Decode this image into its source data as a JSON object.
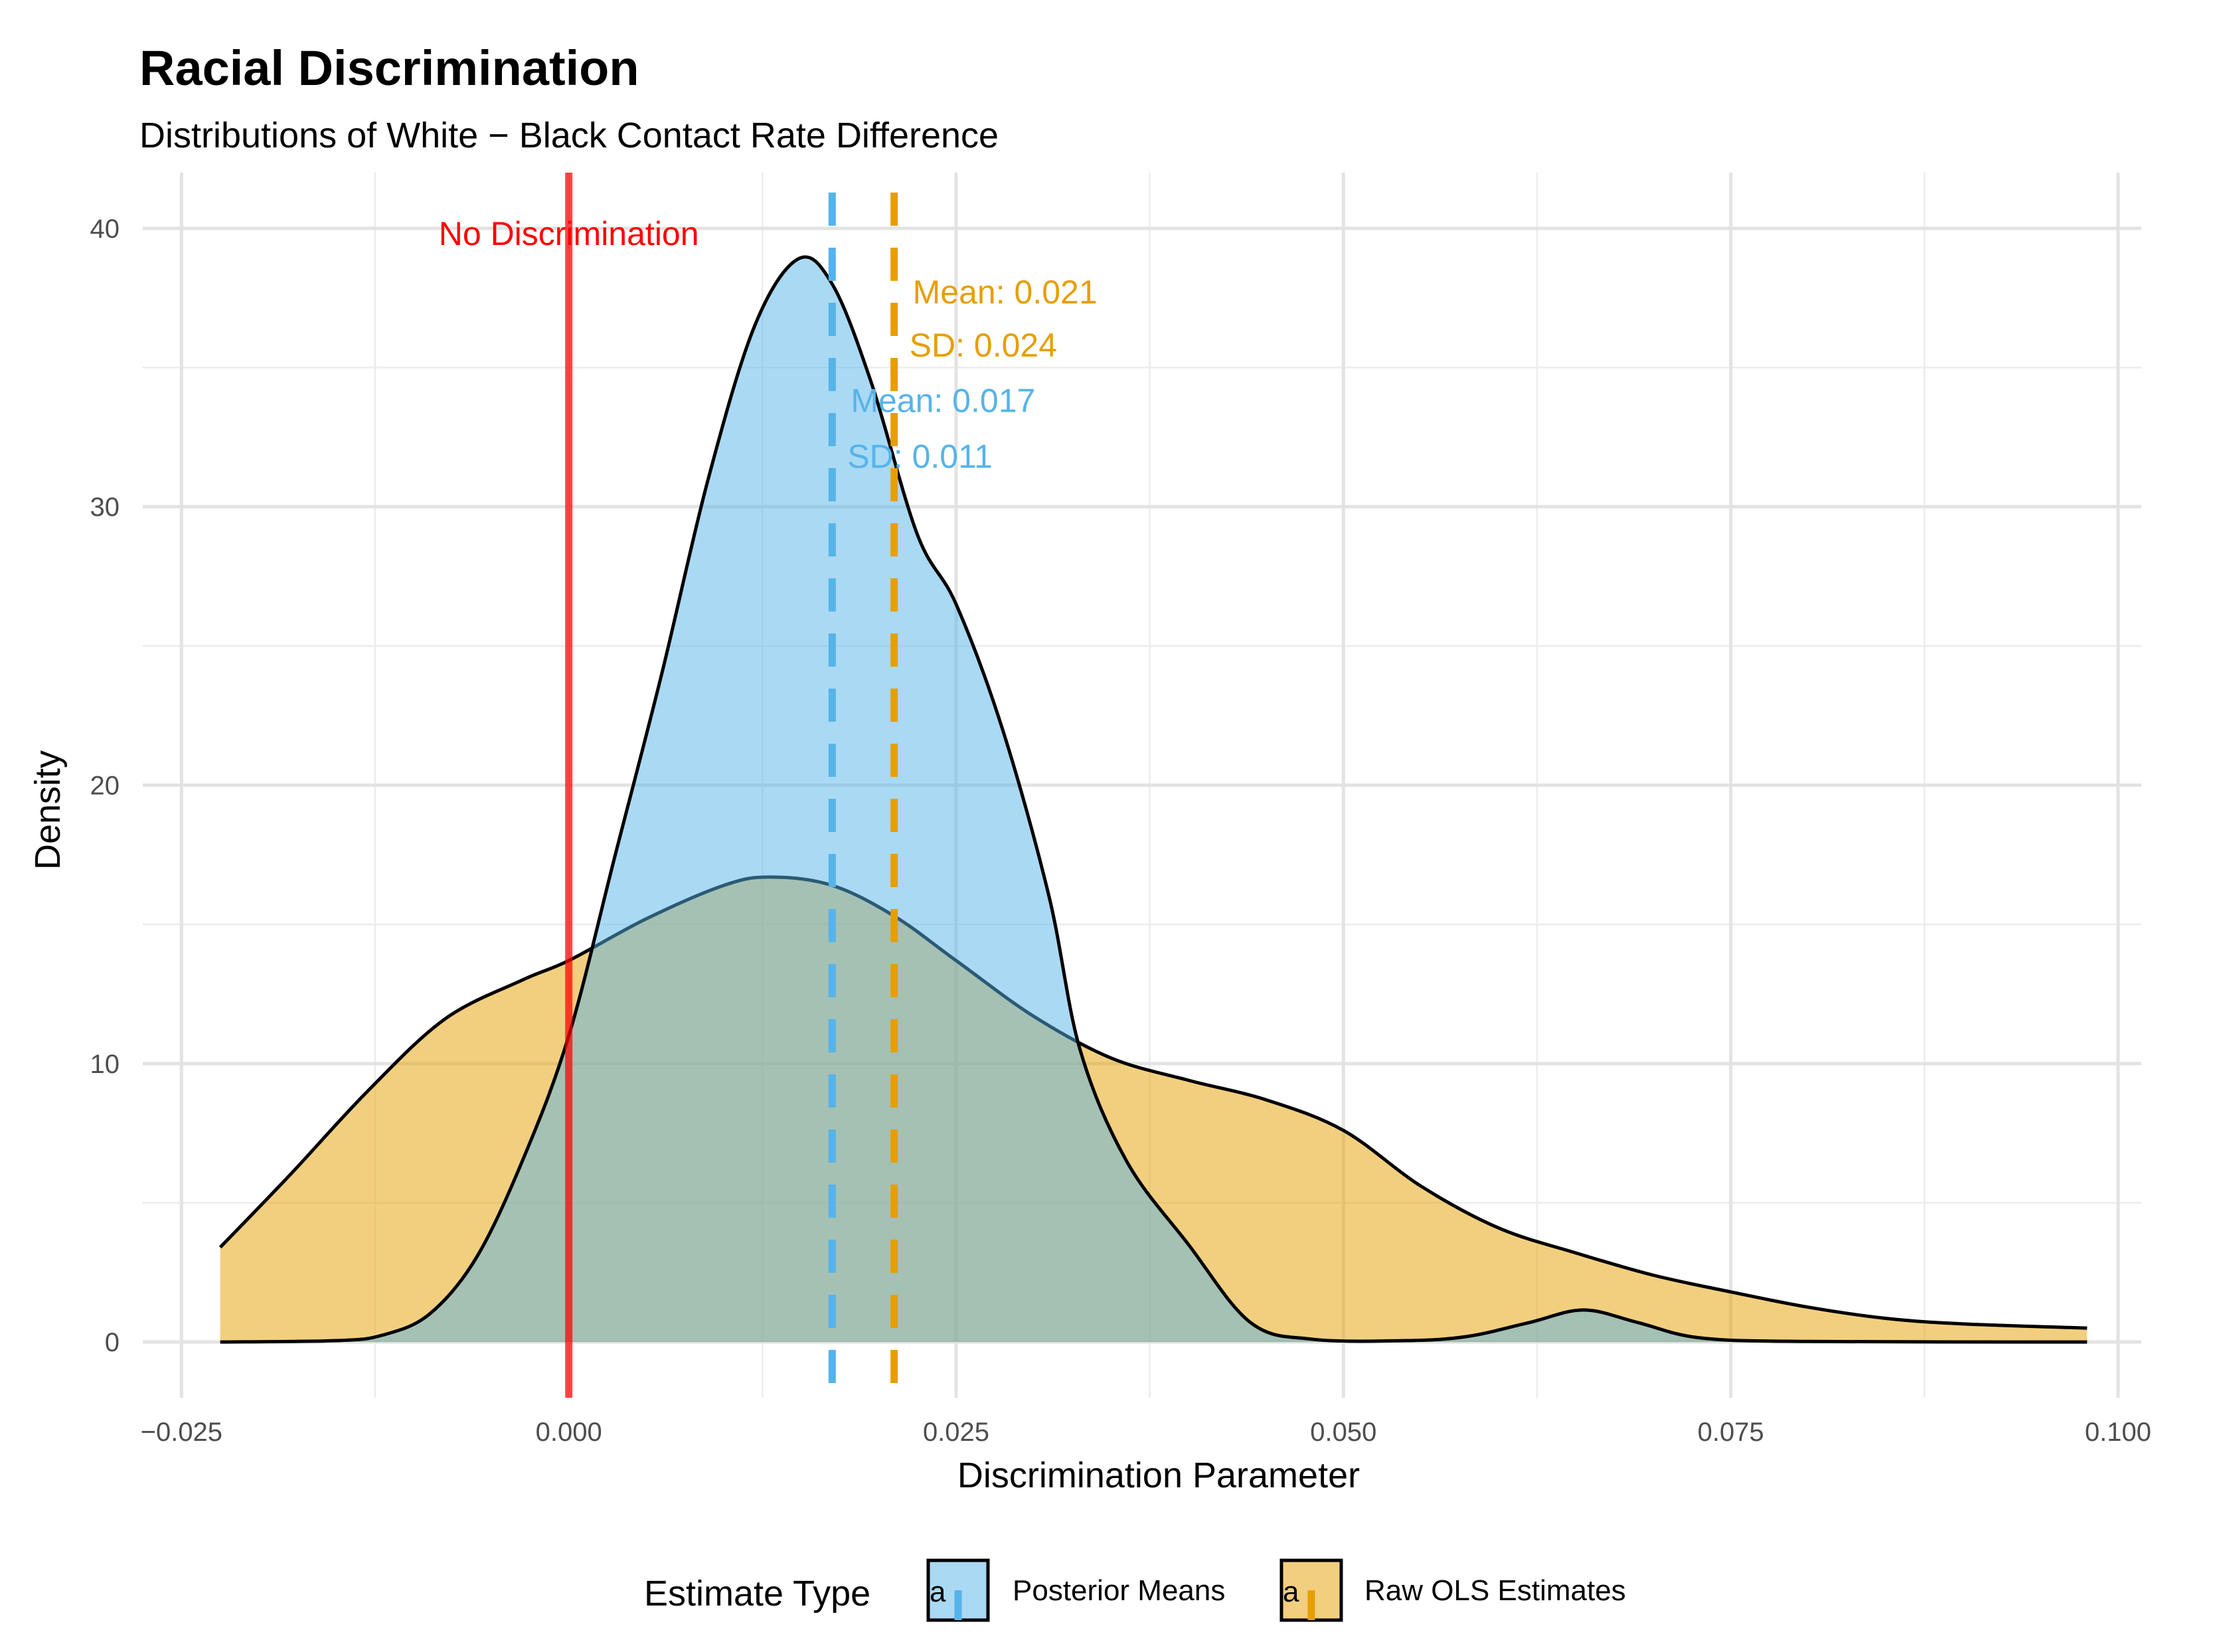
{
  "chart_data": {
    "type": "area",
    "title": "Racial Discrimination",
    "subtitle": "Distributions of White − Black Contact Rate Difference",
    "xlabel": "Discrimination Parameter",
    "ylabel": "Density",
    "xlim": [
      -0.0275,
      0.1015
    ],
    "ylim": [
      -2,
      42
    ],
    "x_ticks": [
      -0.025,
      0.0,
      0.025,
      0.05,
      0.075,
      0.1
    ],
    "x_tick_labels": [
      "−0.025",
      "0.000",
      "0.025",
      "0.050",
      "0.075",
      "0.100"
    ],
    "y_ticks": [
      0,
      10,
      20,
      30,
      40
    ],
    "y_tick_labels": [
      "0",
      "10",
      "20",
      "30",
      "40"
    ],
    "grid": true,
    "legend": {
      "title": "Estimate Type",
      "position": "bottom",
      "entries": [
        "Posterior Means",
        "Raw OLS Estimates"
      ]
    },
    "series": [
      {
        "name": "Raw OLS Estimates",
        "fill": "#E69F00",
        "points": [
          [
            -0.0225,
            3.4
          ],
          [
            -0.018,
            6.0
          ],
          [
            -0.013,
            9.0
          ],
          [
            -0.008,
            11.6
          ],
          [
            -0.003,
            13.0
          ],
          [
            0.0,
            13.7
          ],
          [
            0.005,
            15.2
          ],
          [
            0.01,
            16.4
          ],
          [
            0.013,
            16.7
          ],
          [
            0.017,
            16.4
          ],
          [
            0.021,
            15.3
          ],
          [
            0.025,
            13.7
          ],
          [
            0.03,
            11.7
          ],
          [
            0.035,
            10.2
          ],
          [
            0.04,
            9.4
          ],
          [
            0.045,
            8.7
          ],
          [
            0.05,
            7.6
          ],
          [
            0.055,
            5.6
          ],
          [
            0.06,
            4.1
          ],
          [
            0.065,
            3.2
          ],
          [
            0.07,
            2.4
          ],
          [
            0.075,
            1.8
          ],
          [
            0.08,
            1.25
          ],
          [
            0.085,
            0.85
          ],
          [
            0.09,
            0.65
          ],
          [
            0.098,
            0.5
          ]
        ]
      },
      {
        "name": "Posterior Means",
        "fill": "#56B4E9",
        "points": [
          [
            -0.0225,
            0.0
          ],
          [
            -0.015,
            0.05
          ],
          [
            -0.012,
            0.25
          ],
          [
            -0.009,
            1.0
          ],
          [
            -0.006,
            3.0
          ],
          [
            -0.003,
            6.5
          ],
          [
            0.0,
            11.0
          ],
          [
            0.003,
            17.5
          ],
          [
            0.006,
            24.0
          ],
          [
            0.009,
            31.0
          ],
          [
            0.012,
            36.5
          ],
          [
            0.0148,
            38.9
          ],
          [
            0.017,
            38.0
          ],
          [
            0.0195,
            34.5
          ],
          [
            0.0225,
            29.0
          ],
          [
            0.025,
            26.5
          ],
          [
            0.028,
            22.0
          ],
          [
            0.031,
            16.0
          ],
          [
            0.033,
            10.5
          ],
          [
            0.036,
            6.5
          ],
          [
            0.04,
            3.5
          ],
          [
            0.044,
            0.7
          ],
          [
            0.048,
            0.1
          ],
          [
            0.054,
            0.05
          ],
          [
            0.058,
            0.2
          ],
          [
            0.062,
            0.7
          ],
          [
            0.0655,
            1.15
          ],
          [
            0.069,
            0.7
          ],
          [
            0.073,
            0.15
          ],
          [
            0.08,
            0.02
          ],
          [
            0.098,
            0.0
          ]
        ]
      }
    ],
    "reference_lines": [
      {
        "x": 0.0,
        "label": "No Discrimination",
        "color": "#FF0000",
        "style": "solid"
      },
      {
        "x": 0.017,
        "series": "Posterior Means",
        "color": "#56B4E9",
        "style": "dashed",
        "mean_label": "Mean: 0.017",
        "sd_label": "SD: 0.011"
      },
      {
        "x": 0.021,
        "series": "Raw OLS Estimates",
        "color": "#E69F00",
        "style": "dashed",
        "mean_label": "Mean: 0.021",
        "sd_label": "SD: 0.024"
      }
    ],
    "legend_key_glyph": "a"
  }
}
